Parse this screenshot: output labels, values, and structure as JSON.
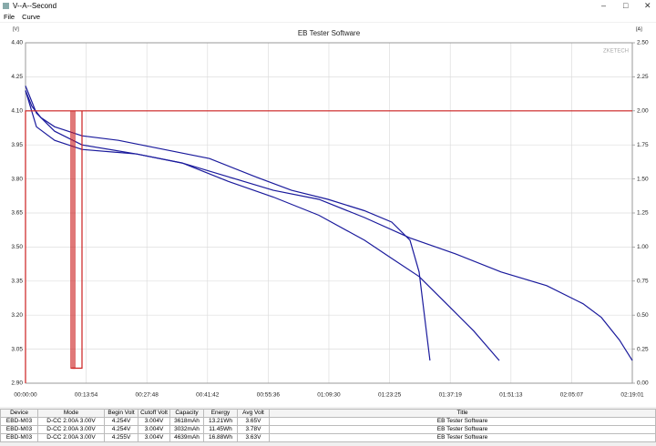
{
  "window": {
    "title": "V--A--Second",
    "menu": [
      "File",
      "Curve"
    ]
  },
  "chart_data": {
    "type": "line",
    "title": "EB Tester Software",
    "watermark": "ZKETECH",
    "ylabel": "[V]",
    "y2label": "[A]",
    "grid": true,
    "xlim": [
      0,
      8341
    ],
    "xticks": [
      {
        "value": 0,
        "label": "00:00:00"
      },
      {
        "value": 834,
        "label": "00:13:54"
      },
      {
        "value": 1668,
        "label": "00:27:48"
      },
      {
        "value": 2502,
        "label": "00:41:42"
      },
      {
        "value": 3336,
        "label": "00:55:36"
      },
      {
        "value": 4170,
        "label": "01:09:30"
      },
      {
        "value": 5005,
        "label": "01:23:25"
      },
      {
        "value": 5839,
        "label": "01:37:19"
      },
      {
        "value": 6673,
        "label": "01:51:13"
      },
      {
        "value": 7507,
        "label": "02:05:07"
      },
      {
        "value": 8341,
        "label": "02:19:01"
      }
    ],
    "ylim": [
      2.9,
      4.4
    ],
    "yticks": [
      {
        "value": 2.9,
        "label": "2.90"
      },
      3.05,
      {
        "value": 3.2,
        "label": "3.20"
      },
      3.35,
      {
        "value": 3.5,
        "label": "3.50"
      },
      3.65,
      {
        "value": 3.8,
        "label": "3.80"
      },
      3.95,
      {
        "value": 4.1,
        "label": "4.10"
      },
      4.25,
      {
        "value": 4.4,
        "label": "4.40"
      }
    ],
    "y2lim": [
      0,
      2.5
    ],
    "y2ticks": [
      {
        "value": 0,
        "label": "0.00"
      },
      0.25,
      {
        "value": 0.5,
        "label": "0.50"
      },
      0.75,
      {
        "value": 1,
        "label": "1.00"
      },
      1.25,
      {
        "value": 1.5,
        "label": "1.50"
      },
      1.75,
      {
        "value": 2,
        "label": "2.00"
      },
      2.25,
      {
        "value": 2.5,
        "label": "2.50"
      }
    ],
    "series": [
      {
        "color": "#1a1a9c",
        "x": [
          0,
          88,
          213,
          401,
          776,
          1277,
          1904,
          2530,
          3156,
          3657,
          4158,
          4659,
          5034,
          5285,
          5410,
          5560
        ],
        "values": [
          4.19,
          4.12,
          4.07,
          4.03,
          3.99,
          3.97,
          3.93,
          3.89,
          3.81,
          3.75,
          3.71,
          3.66,
          3.61,
          3.53,
          3.39,
          3.0
        ]
      },
      {
        "color": "#1a1a9c",
        "x": [
          0,
          150,
          401,
          776,
          1528,
          2154,
          2780,
          3406,
          4033,
          4659,
          5034,
          5410,
          5786,
          6162,
          6512
        ],
        "values": [
          4.21,
          4.09,
          4.01,
          3.95,
          3.91,
          3.87,
          3.79,
          3.72,
          3.64,
          3.53,
          3.45,
          3.37,
          3.25,
          3.13,
          3.0
        ]
      },
      {
        "color": "#1a1a9c",
        "x": [
          0,
          150,
          401,
          776,
          1528,
          2154,
          2780,
          3406,
          4033,
          4659,
          5285,
          5911,
          6537,
          7164,
          7664,
          7915,
          8165,
          8341
        ],
        "values": [
          4.19,
          4.03,
          3.97,
          3.93,
          3.91,
          3.87,
          3.81,
          3.75,
          3.71,
          3.63,
          3.54,
          3.47,
          3.39,
          3.33,
          3.25,
          3.19,
          3.09,
          3.0
        ]
      },
      {
        "color": "#cc1e1e",
        "axis": "y2",
        "x": [
          0,
          0,
          8341
        ],
        "values": [
          0,
          2,
          2
        ]
      },
      {
        "color": "#cc1e1e",
        "axis": "y2",
        "x": [
          626,
          626,
          676,
          676
        ],
        "values": [
          2,
          0.11,
          0.11,
          2
        ]
      },
      {
        "color": "#cc1e1e",
        "axis": "y2",
        "x": [
          651,
          651,
          776,
          776
        ],
        "values": [
          2,
          0.11,
          0.11,
          2
        ]
      }
    ]
  },
  "table": {
    "header": [
      "Device",
      "Mode",
      "Begin Volt",
      "Cutoff Volt",
      "Capacity",
      "Energy",
      "Avg Volt",
      "Title"
    ],
    "rows": [
      [
        "EBD-M03",
        "D-CC 2.00A 3.00V",
        "4.254V",
        "3.004V",
        "3618mAh",
        "13.21Wh",
        "3.65V",
        "EB Tester Software"
      ],
      [
        "EBD-M03",
        "D-CC 2.00A 3.00V",
        "4.254V",
        "3.004V",
        "3032mAh",
        "11.45Wh",
        "3.78V",
        "EB Tester Software"
      ],
      [
        "EBD-M03",
        "D-CC 2.00A 3.00V",
        "4.255V",
        "3.004V",
        "4639mAh",
        "16.88Wh",
        "3.63V",
        "EB Tester Software"
      ]
    ]
  }
}
